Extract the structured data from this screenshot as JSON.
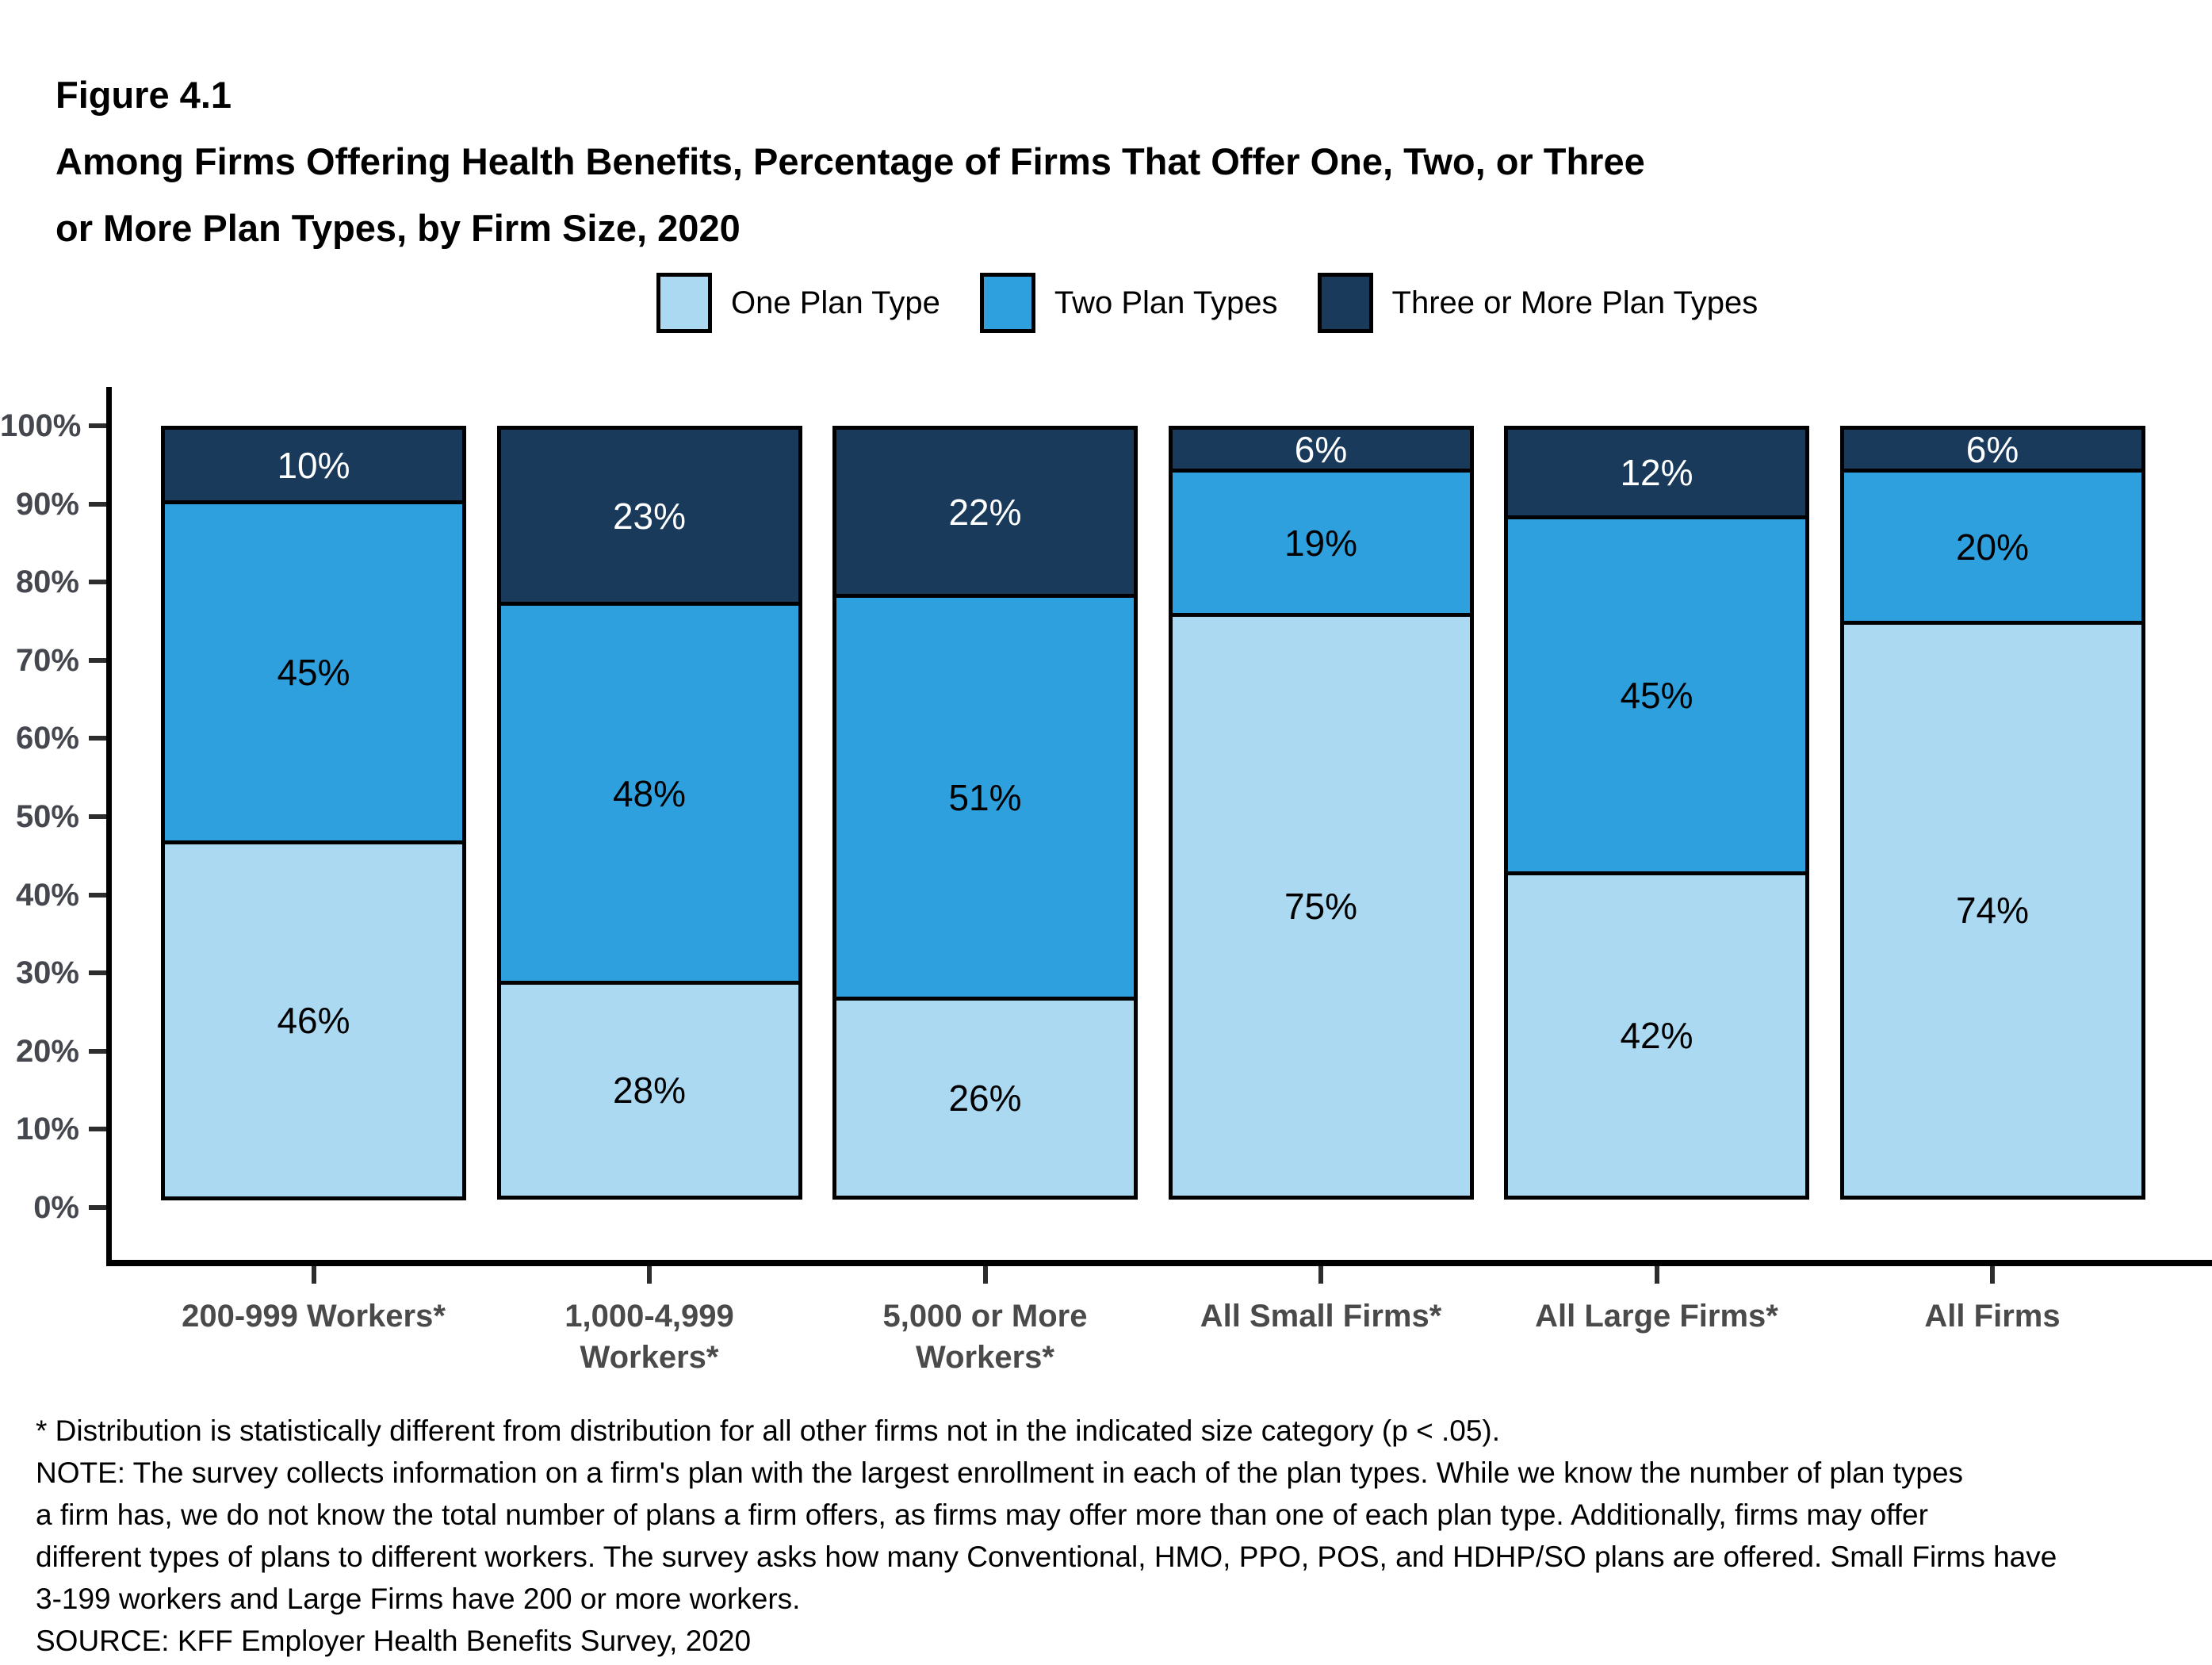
{
  "header": {
    "figure_label": "Figure 4.1",
    "title_line1": "Among Firms Offering Health Benefits, Percentage of Firms That Offer One, Two, or Three",
    "title_line2": "or More Plan Types, by Firm Size, 2020"
  },
  "legend": {
    "items": [
      {
        "label": "One Plan Type",
        "color": "#ABD9F2"
      },
      {
        "label": "Two Plan Types",
        "color": "#2EA0DE"
      },
      {
        "label": "Three or More Plan Types",
        "color": "#1A3A5C"
      }
    ]
  },
  "chart_data": {
    "type": "bar",
    "stacked": true,
    "title": "Among Firms Offering Health Benefits, Percentage of Firms That Offer One, Two, or Three or More Plan Types, by Firm Size, 2020",
    "categories": [
      "200-999 Workers*",
      "1,000-4,999\nWorkers*",
      "5,000 or More\nWorkers*",
      "All Small Firms*",
      "All Large Firms*",
      "All Firms"
    ],
    "series": [
      {
        "name": "One Plan Type",
        "color": "#ABD9F2",
        "label_color": "#000000",
        "values": [
          46,
          28,
          26,
          75,
          42,
          74
        ],
        "labels": [
          "46%",
          "28%",
          "26%",
          "75%",
          "42%",
          "74%"
        ]
      },
      {
        "name": "Two Plan Types",
        "color": "#2EA0DE",
        "label_color": "#000000",
        "values": [
          45,
          48,
          51,
          19,
          45,
          20
        ],
        "labels": [
          "45%",
          "48%",
          "51%",
          "19%",
          "45%",
          "20%"
        ]
      },
      {
        "name": "Three or More Plan Types",
        "color": "#1A3A5C",
        "label_color": "#FFFFFF",
        "values": [
          10,
          23,
          22,
          6,
          12,
          6
        ],
        "labels": [
          "10%",
          "23%",
          "22%",
          "6%",
          "12%",
          "6%"
        ]
      }
    ],
    "y_axis": {
      "min": 0,
      "max": 100,
      "tick_labels": [
        "0%",
        "10%",
        "20%",
        "30%",
        "40%",
        "50%",
        "60%",
        "70%",
        "80%",
        "90%",
        "100%"
      ]
    },
    "grid": false,
    "legend_position": "top"
  },
  "footnotes": {
    "lines": [
      "* Distribution is statistically different from distribution for all other firms not in the indicated size category (p < .05).",
      "NOTE: The survey collects information on a firm's plan with the largest enrollment in each of the plan types. While we know the number of plan types",
      "a firm has, we do not know the total number of plans a firm offers, as firms may offer more than one of each plan type. Additionally, firms may offer",
      "different types of plans to different workers. The survey asks how many Conventional, HMO, PPO, POS, and HDHP/SO plans are offered. Small Firms have",
      "3-199 workers and Large Firms have 200 or more workers.",
      "SOURCE: KFF Employer Health Benefits Survey, 2020"
    ]
  }
}
